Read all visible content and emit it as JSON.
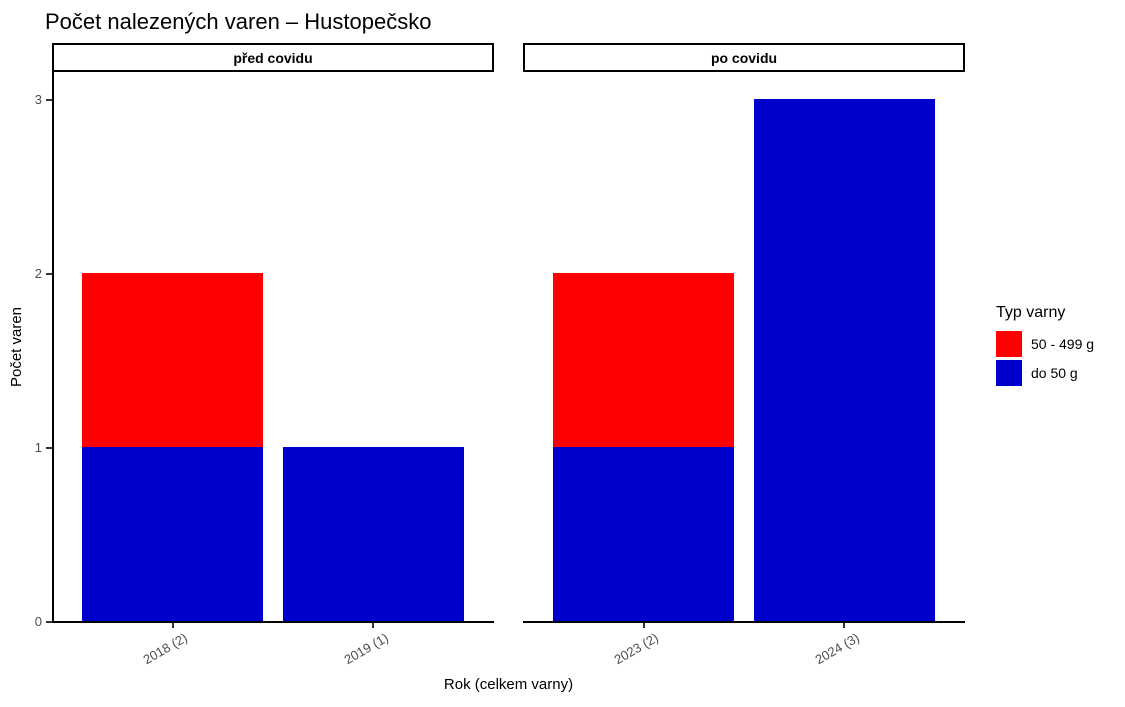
{
  "title": "Počet nalezených varen – Hustopečsko",
  "axes": {
    "x_title": "Rok (celkem varny)",
    "y_title": "Počet varen"
  },
  "legend": {
    "title": "Typ varny",
    "items": [
      {
        "label": "50 - 499 g",
        "color": "#FF0000"
      },
      {
        "label": "do 50 g",
        "color": "#0000CD"
      }
    ]
  },
  "colors": {
    "red": "#FF0000",
    "blue": "#0000CD",
    "axis_text": "#4D4D4D",
    "axis_line": "#000000",
    "background": "#FFFFFF"
  },
  "chart_data": {
    "type": "bar",
    "stacked": true,
    "title": "Počet nalezených varen – Hustopečsko",
    "xlabel": "Rok (celkem varny)",
    "ylabel": "Počet varen",
    "y_ticks": [
      0,
      1,
      2,
      3
    ],
    "ylim": [
      0,
      3.15
    ],
    "grid": false,
    "legend_position": "right",
    "legend_title": "Typ varny",
    "stack_order": "bottom-to-top",
    "facets": [
      {
        "label": "před covidu",
        "categories": [
          "2018 (2)",
          "2019 (1)"
        ],
        "series": [
          {
            "name": "do 50 g",
            "color": "#0000CD",
            "values": [
              1,
              1
            ]
          },
          {
            "name": "50 - 499 g",
            "color": "#FF0000",
            "values": [
              1,
              0
            ]
          }
        ]
      },
      {
        "label": "po covidu",
        "categories": [
          "2023 (2)",
          "2024 (3)"
        ],
        "series": [
          {
            "name": "do 50 g",
            "color": "#0000CD",
            "values": [
              1,
              3
            ]
          },
          {
            "name": "50 - 499 g",
            "color": "#FF0000",
            "values": [
              1,
              0
            ]
          }
        ]
      }
    ]
  }
}
